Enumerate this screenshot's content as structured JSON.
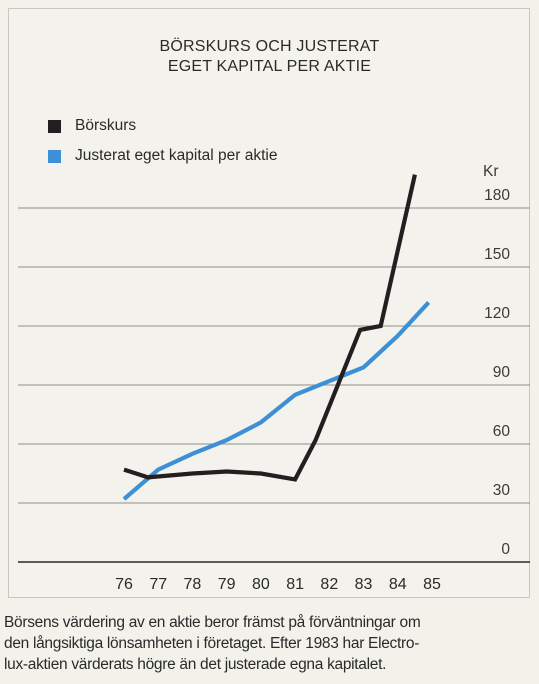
{
  "chart_data": {
    "type": "line",
    "title": "BÖRSKURS OCH JUSTERAT",
    "subtitle": "EGET KAPITAL PER AKTIE",
    "ylabel": "Kr",
    "ylim": [
      0,
      180
    ],
    "y_ticks": [
      "0",
      "30",
      "60",
      "90",
      "120",
      "150",
      "180"
    ],
    "x": [
      "76",
      "77",
      "78",
      "79",
      "80",
      "81",
      "82",
      "83",
      "84",
      "85"
    ],
    "grid": true,
    "legend_position": "top-left",
    "series": [
      {
        "name": "Börskurs",
        "color": "#231f20",
        "points": [
          [
            76.0,
            47
          ],
          [
            76.7,
            43
          ],
          [
            78.0,
            45
          ],
          [
            79.0,
            46
          ],
          [
            80.0,
            45
          ],
          [
            81.0,
            42
          ],
          [
            81.6,
            62
          ],
          [
            82.9,
            118
          ],
          [
            83.5,
            120
          ],
          [
            84.5,
            197
          ]
        ]
      },
      {
        "name": "Justerat eget kapital per aktie",
        "color": "#3d8fd6",
        "points": [
          [
            76.0,
            32
          ],
          [
            77.0,
            47
          ],
          [
            78.0,
            55
          ],
          [
            79.0,
            62
          ],
          [
            80.0,
            71
          ],
          [
            81.0,
            85
          ],
          [
            82.0,
            92
          ],
          [
            83.0,
            99
          ],
          [
            84.0,
            115
          ],
          [
            84.9,
            132
          ]
        ]
      }
    ]
  },
  "caption": {
    "lines": [
      "Börsens värdering av en aktie beror främst på förväntningar om",
      "den långsiktiga lönsamheten i företaget. Efter 1983 har Electro-",
      "lux-aktien värderats högre än det justerade egna kapitalet."
    ]
  }
}
